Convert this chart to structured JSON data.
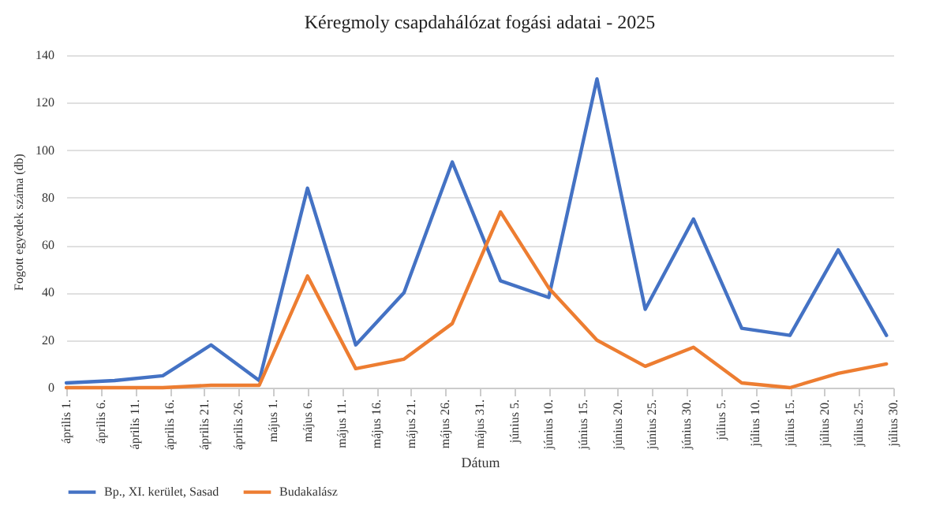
{
  "chart_data": {
    "type": "line",
    "title": "Kéregmoly csapdahálózat fogási adatai - 2025",
    "xlabel": "Dátum",
    "ylabel": "Fogott egyedek száma (db)",
    "x": [
      "2025-04-01",
      "2025-04-08",
      "2025-04-15",
      "2025-04-22",
      "2025-04-29",
      "2025-05-06",
      "2025-05-13",
      "2025-05-20",
      "2025-05-27",
      "2025-06-03",
      "2025-06-10",
      "2025-06-17",
      "2025-06-24",
      "2025-07-01",
      "2025-07-08",
      "2025-07-15",
      "2025-07-22",
      "2025-07-29"
    ],
    "series": [
      {
        "name": "Bp., XI. kerület, Sasad",
        "color": "#4472c4",
        "values": [
          2,
          3,
          5,
          18,
          3,
          84,
          18,
          40,
          95,
          45,
          38,
          130,
          33,
          71,
          25,
          22,
          58,
          22
        ]
      },
      {
        "name": "Budakalász",
        "color": "#ed7d31",
        "values": [
          0,
          0,
          0,
          1,
          1,
          47,
          8,
          12,
          27,
          74,
          42,
          20,
          9,
          17,
          2,
          0,
          6,
          10
        ]
      }
    ],
    "xlim": [
      "2025-04-01",
      "2025-07-30"
    ],
    "xticks": [
      {
        "value": "2025-04-01",
        "label": "április 1."
      },
      {
        "value": "2025-04-06",
        "label": "április 6."
      },
      {
        "value": "2025-04-11",
        "label": "április 11."
      },
      {
        "value": "2025-04-16",
        "label": "április 16."
      },
      {
        "value": "2025-04-21",
        "label": "április 21."
      },
      {
        "value": "2025-04-26",
        "label": "április 26."
      },
      {
        "value": "2025-05-01",
        "label": "május 1."
      },
      {
        "value": "2025-05-06",
        "label": "május 6."
      },
      {
        "value": "2025-05-11",
        "label": "május 11."
      },
      {
        "value": "2025-05-16",
        "label": "május 16."
      },
      {
        "value": "2025-05-21",
        "label": "május 21."
      },
      {
        "value": "2025-05-26",
        "label": "május 26."
      },
      {
        "value": "2025-05-31",
        "label": "május 31."
      },
      {
        "value": "2025-06-05",
        "label": "június 5."
      },
      {
        "value": "2025-06-10",
        "label": "június 10."
      },
      {
        "value": "2025-06-15",
        "label": "június 15."
      },
      {
        "value": "2025-06-20",
        "label": "június 20."
      },
      {
        "value": "2025-06-25",
        "label": "június 25."
      },
      {
        "value": "2025-06-30",
        "label": "június 30."
      },
      {
        "value": "2025-07-05",
        "label": "július 5."
      },
      {
        "value": "2025-07-10",
        "label": "július 10."
      },
      {
        "value": "2025-07-15",
        "label": "július 15."
      },
      {
        "value": "2025-07-20",
        "label": "július 20."
      },
      {
        "value": "2025-07-25",
        "label": "július 25."
      },
      {
        "value": "2025-07-30",
        "label": "július 30."
      }
    ],
    "ylim": [
      0,
      140
    ],
    "yticks": [
      0,
      20,
      40,
      60,
      80,
      100,
      120,
      140
    ],
    "grid": "y",
    "legend": "bottom",
    "marker": "none",
    "line_style": "solid"
  }
}
